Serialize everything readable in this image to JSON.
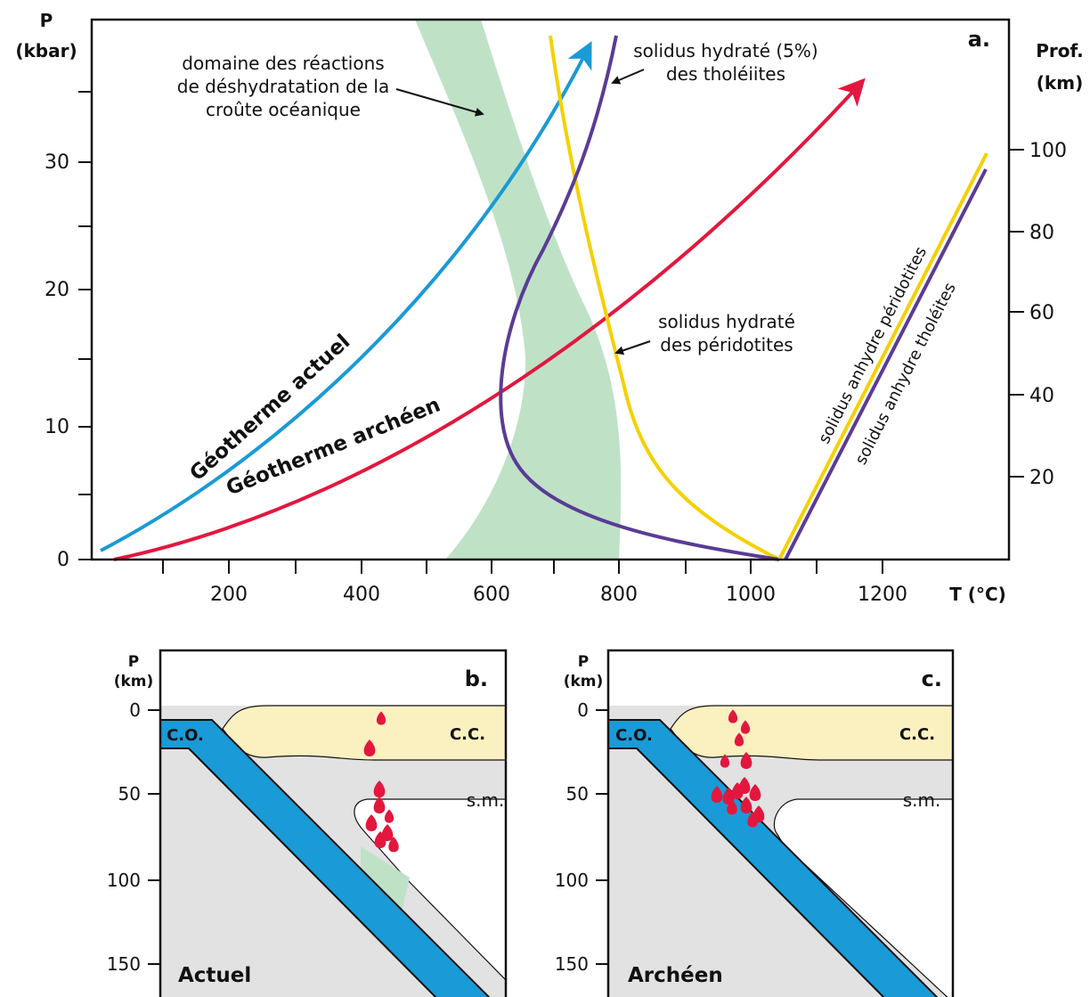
{
  "panel_a": {
    "label": "a.",
    "y_axis_title": [
      "P",
      "(kbar)"
    ],
    "y_ticks": [
      "0",
      "10",
      "20",
      "30"
    ],
    "y2_axis_title": [
      "Prof.",
      "(km)"
    ],
    "y2_ticks": [
      "20",
      "40",
      "60",
      "80",
      "100"
    ],
    "x_ticks": [
      "200",
      "400",
      "600",
      "800",
      "1000",
      "1200"
    ],
    "x_axis_title": "T (°C)",
    "annotations": {
      "dehydration": [
        "domaine des réactions",
        "de déshydratation de la",
        "croûte océanique"
      ],
      "tholeiite_hydrated": [
        "solidus hydraté (5%)",
        "des tholéiites"
      ],
      "peridotite_hydrated": [
        "solidus hydraté",
        "des péridotites"
      ],
      "geotherm_now": "Géotherme actuel",
      "geotherm_archean": "Géotherme archéen",
      "peridotite_anhydrous": "solidus anhydre péridotites",
      "tholeiite_anhydrous": "solidus anhydre tholéites"
    }
  },
  "panel_b": {
    "label": "b.",
    "y_axis_title": [
      "P",
      "(km)"
    ],
    "y_ticks": [
      "0",
      "50",
      "100",
      "150"
    ],
    "oceanic_crust": "C.O.",
    "continental_crust": "C.C.",
    "mantle": "s.m.",
    "era": "Actuel"
  },
  "panel_c": {
    "label": "c.",
    "y_axis_title": [
      "P",
      "(km)"
    ],
    "y_ticks": [
      "0",
      "50",
      "100",
      "150"
    ],
    "oceanic_crust": "C.O.",
    "continental_crust": "C.C.",
    "mantle": "s.m.",
    "era": "Archéen"
  }
}
